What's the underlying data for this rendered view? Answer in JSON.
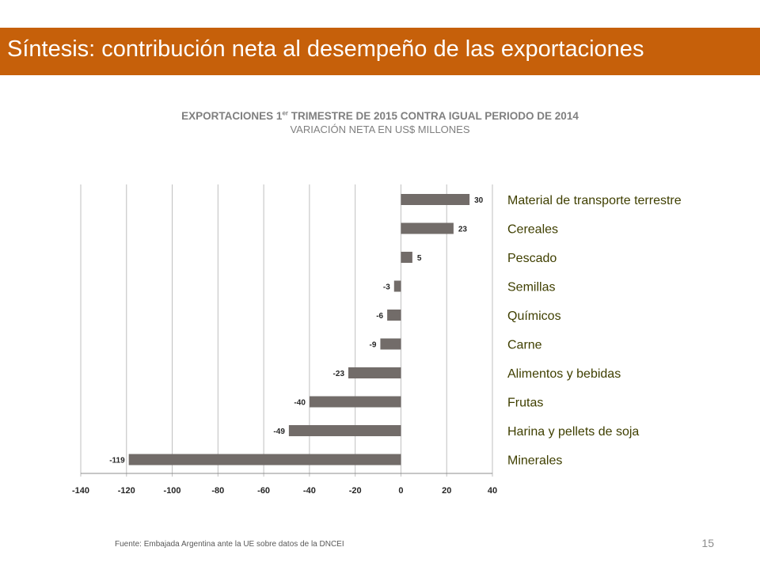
{
  "slide": {
    "title": "Síntesis: contribución neta al desempeño de las exportaciones",
    "source": "Fuente: Embajada Argentina ante la UE sobre datos de la DNCEI",
    "page_number": "15"
  },
  "colors": {
    "title_bar": "#c6600a",
    "bar": "#726c69",
    "grid": "#bfbfbf",
    "category_label": "#3f3f00"
  },
  "chart_data": {
    "type": "bar",
    "orientation": "horizontal",
    "title_main": "EXPORTACIONES 1",
    "title_sup": "er",
    "title_rest": " TRIMESTRE DE 2015 CONTRA IGUAL PERIODO DE 2014",
    "subtitle": "VARIACIÓN NETA EN US$ MILLONES",
    "categories": [
      "Material de transporte terrestre",
      "Cereales",
      "Pescado",
      "Semillas",
      "Químicos",
      "Carne",
      "Alimentos y bebidas",
      "Frutas",
      "Harina y pellets de soja",
      "Minerales"
    ],
    "values": [
      30,
      23,
      5,
      -3,
      -6,
      -9,
      -23,
      -40,
      -49,
      -119
    ],
    "data_labels": [
      "30",
      "23",
      "5",
      "-3",
      "-6",
      "-9",
      "-23",
      "-40",
      "-49",
      "-119"
    ],
    "xlim": [
      -140,
      40
    ],
    "xticks": [
      "-140",
      "-120",
      "-100",
      "-80",
      "-60",
      "-40",
      "-20",
      "0",
      "20",
      "40"
    ],
    "grid": true,
    "legend": "none"
  }
}
